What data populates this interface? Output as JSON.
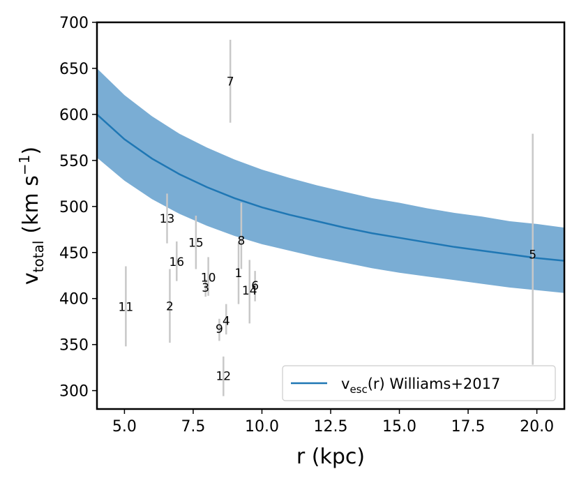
{
  "colors": {
    "band": "#7aadd4",
    "curve": "#1f77b4",
    "errorbar": "#c8c8c8",
    "axes": "#000000"
  },
  "chart_data": {
    "type": "scatter",
    "xlabel": "r (kpc)",
    "ylabel_main": "v",
    "ylabel_sub": "total",
    "ylabel_unit": "(km s",
    "ylabel_exp": "−1",
    "ylabel_close": ")",
    "xlim": [
      4.0,
      21.0
    ],
    "ylim": [
      280,
      700
    ],
    "xticks": [
      5.0,
      7.5,
      10.0,
      12.5,
      15.0,
      17.5,
      20.0
    ],
    "xtick_labels": [
      "5.0",
      "7.5",
      "10.0",
      "12.5",
      "15.0",
      "17.5",
      "20.0"
    ],
    "yticks": [
      300,
      350,
      400,
      450,
      500,
      550,
      600,
      650,
      700
    ],
    "ytick_labels": [
      "300",
      "350",
      "400",
      "450",
      "500",
      "550",
      "600",
      "650",
      "700"
    ],
    "grid": false,
    "legend_position": "lower-right",
    "legend": {
      "main": "v",
      "sub": "esc",
      "rest": "(r) Williams+2017"
    },
    "escape_curve": {
      "x": [
        4.0,
        5.0,
        6.0,
        7.0,
        8.0,
        9.0,
        10.0,
        11.0,
        12.0,
        13.0,
        14.0,
        15.0,
        16.0,
        17.0,
        18.0,
        19.0,
        20.0,
        21.0
      ],
      "y": [
        600,
        573,
        552,
        535,
        521,
        509,
        499,
        491,
        484,
        477,
        471,
        466,
        461,
        456,
        452,
        448,
        444,
        441
      ],
      "y_upper": [
        650,
        621,
        598,
        579,
        564,
        551,
        540,
        531,
        523,
        516,
        509,
        504,
        498,
        493,
        489,
        484,
        481,
        477
      ],
      "y_lower": [
        553,
        528,
        508,
        492,
        479,
        468,
        459,
        452,
        445,
        439,
        433,
        428,
        424,
        420,
        416,
        412,
        409,
        406
      ]
    },
    "points": [
      {
        "label": "1",
        "x": 9.15,
        "y": 428,
        "y_low": 394,
        "y_high": 461
      },
      {
        "label": "2",
        "x": 6.65,
        "y": 392,
        "y_low": 352,
        "y_high": 432
      },
      {
        "label": "3",
        "x": 7.95,
        "y": 412,
        "y_low": 402,
        "y_high": 421
      },
      {
        "label": "4",
        "x": 8.7,
        "y": 376,
        "y_low": 361,
        "y_high": 394
      },
      {
        "label": "5",
        "x": 19.85,
        "y": 448,
        "y_low": 328,
        "y_high": 579
      },
      {
        "label": "6",
        "x": 9.75,
        "y": 414,
        "y_low": 397,
        "y_high": 430
      },
      {
        "label": "7",
        "x": 8.85,
        "y": 636,
        "y_low": 591,
        "y_high": 681
      },
      {
        "label": "8",
        "x": 9.25,
        "y": 463,
        "y_low": 432,
        "y_high": 504
      },
      {
        "label": "9",
        "x": 8.45,
        "y": 367,
        "y_low": 354,
        "y_high": 378
      },
      {
        "label": "10",
        "x": 8.05,
        "y": 423,
        "y_low": 403,
        "y_high": 445
      },
      {
        "label": "11",
        "x": 5.05,
        "y": 391,
        "y_low": 348,
        "y_high": 435
      },
      {
        "label": "12",
        "x": 8.6,
        "y": 316,
        "y_low": 294,
        "y_high": 337
      },
      {
        "label": "13",
        "x": 6.55,
        "y": 487,
        "y_low": 460,
        "y_high": 514
      },
      {
        "label": "14",
        "x": 9.55,
        "y": 409,
        "y_low": 373,
        "y_high": 442
      },
      {
        "label": "15",
        "x": 7.6,
        "y": 461,
        "y_low": 432,
        "y_high": 490
      },
      {
        "label": "16",
        "x": 6.9,
        "y": 440,
        "y_low": 419,
        "y_high": 462
      }
    ]
  }
}
